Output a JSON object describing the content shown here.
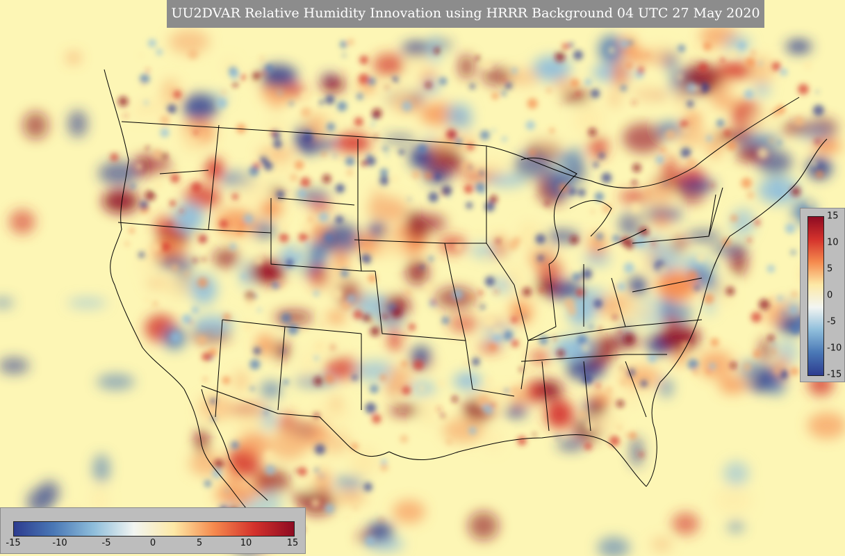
{
  "title": "UU2DVAR Relative Humidity Innovation using HRRR Background 04 UTC 27 May 2020",
  "colorbar": {
    "min": -15,
    "max": 15,
    "ticks_horizontal": [
      "-15",
      "-10",
      "-5",
      "0",
      "5",
      "10",
      "15"
    ],
    "ticks_vertical": [
      "15",
      "10",
      "5",
      "0",
      "-5",
      "-10",
      "-15"
    ],
    "colors": [
      "#2d3c8f",
      "#4a78b6",
      "#8fbedb",
      "#f2f5f2",
      "#fde9a6",
      "#f58a4e",
      "#d4322c",
      "#8e0b22"
    ]
  },
  "map": {
    "background_color": "#fdf6b5",
    "border_color": "#000000",
    "field": "relative humidity innovation"
  }
}
